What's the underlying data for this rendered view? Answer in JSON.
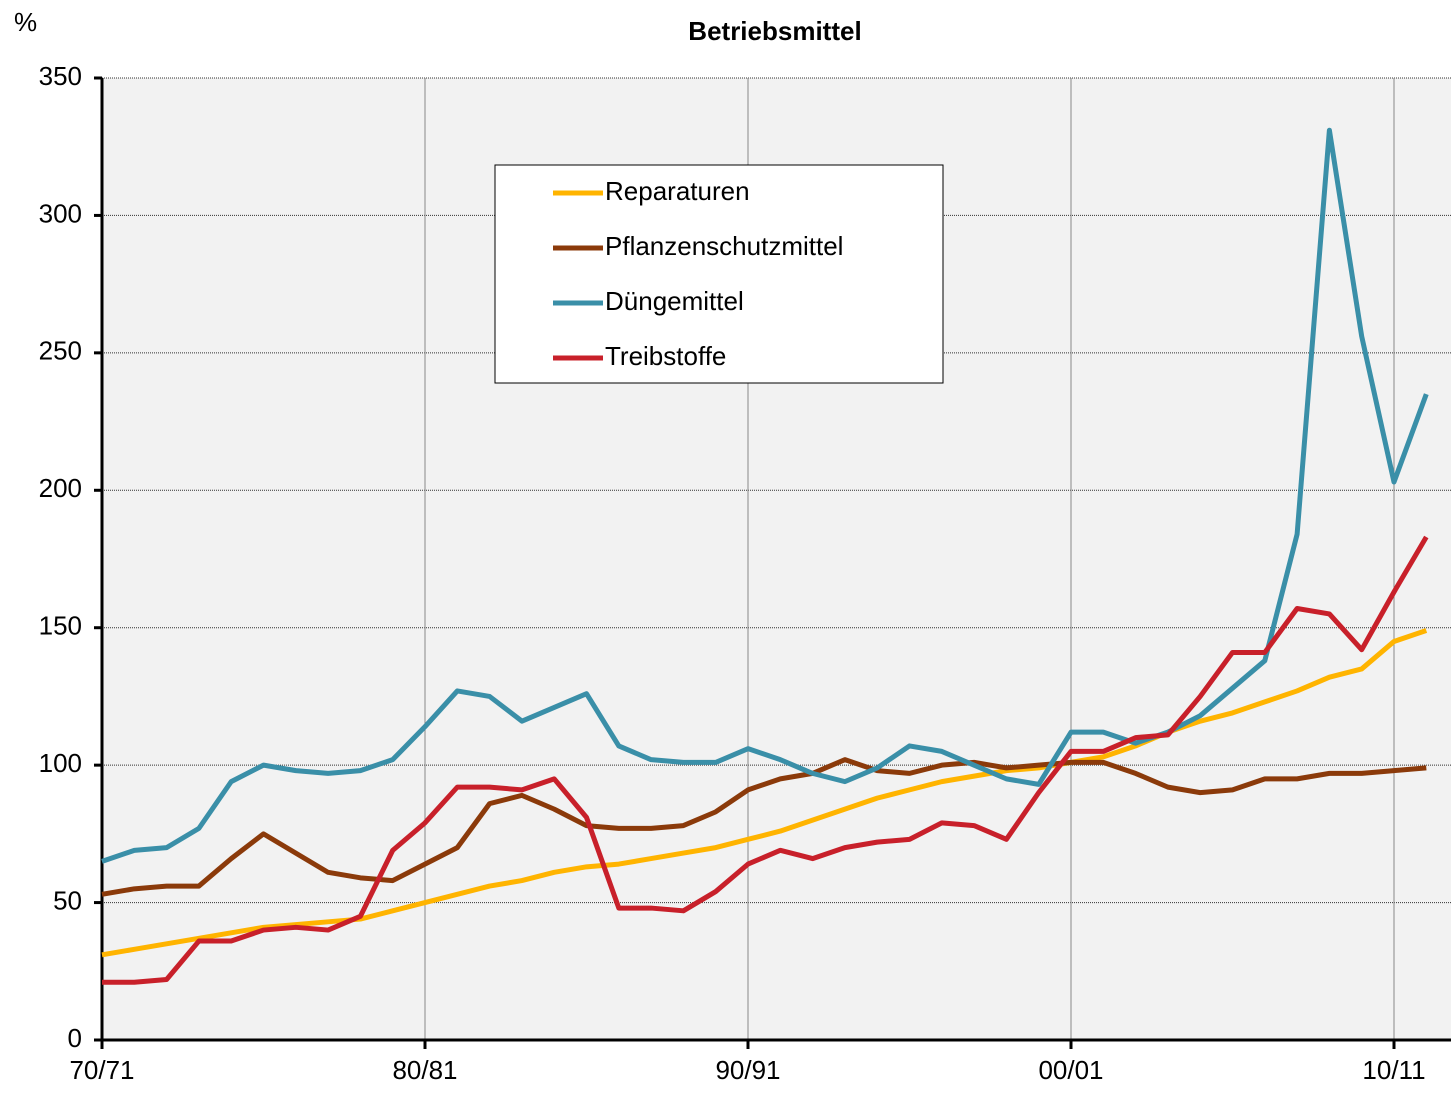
{
  "chart_data": {
    "type": "line",
    "title": "Betriebsmittel",
    "y_label": "%",
    "categories": [
      "70/71",
      null,
      null,
      null,
      null,
      null,
      null,
      null,
      null,
      null,
      "80/81",
      null,
      null,
      null,
      null,
      null,
      null,
      null,
      null,
      null,
      "90/91",
      null,
      null,
      null,
      null,
      null,
      null,
      null,
      null,
      null,
      "00/01",
      null,
      null,
      null,
      null,
      null,
      null,
      null,
      null,
      null,
      "10/11",
      null
    ],
    "series": [
      {
        "name": "Reparaturen",
        "color": "#ffb400",
        "values": [
          31,
          33,
          35,
          37,
          39,
          41,
          42,
          43,
          44,
          47,
          50,
          53,
          56,
          58,
          61,
          63,
          64,
          66,
          68,
          70,
          73,
          76,
          80,
          84,
          88,
          91,
          94,
          96,
          98,
          99,
          101,
          103,
          107,
          112,
          116,
          119,
          123,
          127,
          132,
          135,
          145,
          149
        ]
      },
      {
        "name": "Pflanzenschutzmittel",
        "color": "#8b3a0a",
        "values": [
          53,
          55,
          56,
          56,
          66,
          75,
          68,
          61,
          59,
          58,
          64,
          70,
          86,
          89,
          84,
          78,
          77,
          77,
          78,
          83,
          91,
          95,
          97,
          102,
          98,
          97,
          100,
          101,
          99,
          100,
          101,
          101,
          97,
          92,
          90,
          91,
          95,
          95,
          97,
          97,
          98,
          99
        ]
      },
      {
        "name": "Düngemittel",
        "color": "#3a8fa8",
        "values": [
          65,
          69,
          70,
          77,
          94,
          100,
          98,
          97,
          98,
          102,
          114,
          127,
          125,
          116,
          121,
          126,
          107,
          102,
          101,
          101,
          106,
          102,
          97,
          94,
          99,
          107,
          105,
          100,
          95,
          93,
          112,
          112,
          108,
          112,
          118,
          128,
          138,
          184,
          331,
          256,
          203,
          235
        ]
      },
      {
        "name": "Treibstoffe",
        "color": "#c8202a",
        "values": [
          21,
          21,
          22,
          36,
          36,
          40,
          41,
          40,
          45,
          69,
          79,
          92,
          92,
          91,
          95,
          81,
          48,
          48,
          47,
          54,
          64,
          69,
          66,
          70,
          72,
          73,
          79,
          78,
          73,
          90,
          105,
          105,
          110,
          111,
          125,
          141,
          141,
          157,
          155,
          142,
          163,
          183
        ]
      }
    ],
    "ylim": [
      0,
      350
    ],
    "yticks": [
      0,
      50,
      100,
      150,
      200,
      250,
      300,
      350
    ],
    "grid": true,
    "legend": "top"
  }
}
